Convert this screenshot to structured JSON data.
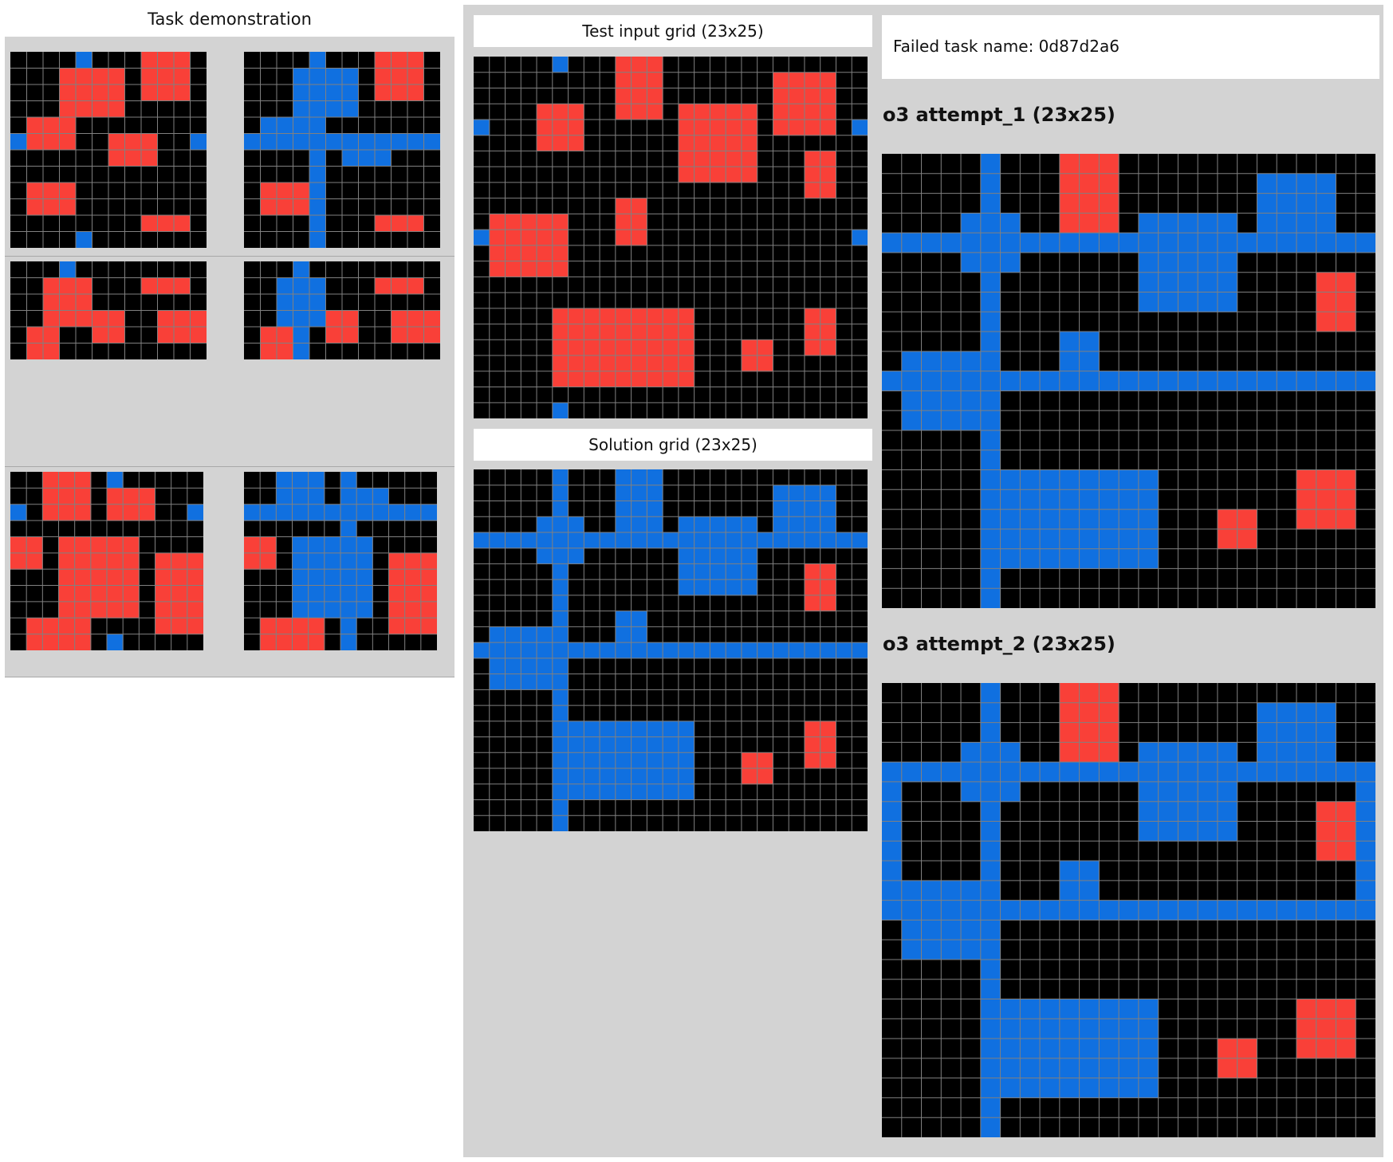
{
  "demo": {
    "title": "Task demonstration"
  },
  "right": {
    "input_caption": "Test input grid (23x25)",
    "solution_caption": "Solution grid (23x25)",
    "task_name": "Failed task name: 0d87d2a6",
    "attempt1_title": "o3 attempt_1 (23x25)",
    "attempt2_title": "o3 attempt_2 (23x25)"
  },
  "palette": {
    "0": "#000000",
    "1": "#1070e0",
    "2": "#f94038",
    "line": "#808080"
  },
  "grids": {
    "demo0_in": {
      "rows": 12,
      "cols": 12,
      "red": [
        [
          0,
          8,
          2,
          10
        ],
        [
          1,
          3,
          3,
          6
        ],
        [
          4,
          1,
          5,
          3
        ],
        [
          5,
          6,
          6,
          8
        ],
        [
          8,
          1,
          9,
          3
        ],
        [
          10,
          8,
          10,
          10
        ]
      ],
      "blue": [
        [
          0,
          4,
          0,
          4
        ],
        [
          5,
          0,
          5,
          0
        ],
        [
          5,
          11,
          5,
          11
        ],
        [
          11,
          4,
          11,
          4
        ]
      ]
    },
    "demo0_out": {
      "rows": 12,
      "cols": 12,
      "red": [
        [
          0,
          8,
          2,
          10
        ],
        [
          8,
          1,
          9,
          3
        ],
        [
          10,
          8,
          10,
          10
        ]
      ],
      "blue": [
        [
          0,
          4,
          11,
          4
        ],
        [
          5,
          0,
          5,
          11
        ],
        [
          1,
          3,
          3,
          6
        ],
        [
          4,
          1,
          5,
          3
        ],
        [
          5,
          6,
          6,
          8
        ]
      ]
    },
    "demo1_in": {
      "rows": 6,
      "cols": 12,
      "red": [
        [
          1,
          8,
          1,
          10
        ],
        [
          1,
          2,
          3,
          4
        ],
        [
          3,
          5,
          4,
          6
        ],
        [
          3,
          9,
          4,
          11
        ],
        [
          4,
          1,
          5,
          2
        ]
      ],
      "blue": [
        [
          0,
          3,
          0,
          3
        ],
        [
          6,
          3,
          6,
          3
        ]
      ]
    },
    "demo1_out": {
      "rows": 6,
      "cols": 12,
      "red": [
        [
          1,
          8,
          1,
          10
        ],
        [
          3,
          5,
          4,
          6
        ],
        [
          3,
          9,
          4,
          11
        ],
        [
          4,
          1,
          5,
          2
        ]
      ],
      "blue": [
        [
          0,
          3,
          5,
          3
        ],
        [
          1,
          2,
          3,
          4
        ]
      ]
    },
    "demo2_in": {
      "rows": 11,
      "cols": 12,
      "red": [
        [
          0,
          2,
          2,
          4
        ],
        [
          1,
          6,
          2,
          8
        ],
        [
          4,
          0,
          5,
          1
        ],
        [
          4,
          3,
          8,
          7
        ],
        [
          5,
          9,
          9,
          11
        ],
        [
          9,
          1,
          10,
          4
        ]
      ],
      "blue": [
        [
          0,
          6,
          0,
          6
        ],
        [
          2,
          0,
          2,
          0
        ],
        [
          2,
          11,
          2,
          11
        ],
        [
          10,
          6,
          10,
          6
        ]
      ]
    },
    "demo2_out": {
      "rows": 11,
      "cols": 12,
      "red": [
        [
          4,
          0,
          5,
          1
        ],
        [
          5,
          9,
          9,
          11
        ],
        [
          9,
          1,
          10,
          4
        ]
      ],
      "blue": [
        [
          0,
          6,
          10,
          6
        ],
        [
          2,
          0,
          2,
          11
        ],
        [
          0,
          2,
          2,
          4
        ],
        [
          1,
          6,
          2,
          8
        ],
        [
          4,
          3,
          8,
          7
        ]
      ]
    },
    "test_input": {
      "rows": 23,
      "cols": 25,
      "red": [
        [
          0,
          9,
          3,
          11
        ],
        [
          1,
          19,
          4,
          22
        ],
        [
          3,
          4,
          5,
          6
        ],
        [
          3,
          13,
          7,
          17
        ],
        [
          6,
          21,
          8,
          22
        ],
        [
          9,
          9,
          11,
          10
        ],
        [
          10,
          1,
          13,
          5
        ],
        [
          16,
          5,
          20,
          13
        ],
        [
          16,
          21,
          18,
          22
        ],
        [
          18,
          17,
          19,
          18
        ]
      ],
      "blue": [
        [
          0,
          5,
          0,
          5
        ],
        [
          4,
          0,
          4,
          0
        ],
        [
          4,
          24,
          4,
          24
        ],
        [
          11,
          0,
          11,
          0
        ],
        [
          11,
          24,
          11,
          24
        ],
        [
          22,
          5,
          22,
          5
        ]
      ]
    },
    "solution": {
      "rows": 23,
      "cols": 25,
      "red": [
        [
          6,
          21,
          8,
          22
        ],
        [
          16,
          21,
          18,
          22
        ],
        [
          18,
          17,
          19,
          18
        ]
      ],
      "blue": [
        [
          0,
          5,
          22,
          5
        ],
        [
          4,
          0,
          4,
          24
        ],
        [
          11,
          0,
          11,
          24
        ],
        [
          0,
          9,
          3,
          11
        ],
        [
          1,
          19,
          4,
          22
        ],
        [
          3,
          4,
          5,
          6
        ],
        [
          3,
          13,
          7,
          17
        ],
        [
          9,
          9,
          11,
          10
        ],
        [
          10,
          1,
          13,
          5
        ],
        [
          16,
          5,
          20,
          13
        ]
      ]
    },
    "attempt1": {
      "rows": 23,
      "cols": 25,
      "red": [
        [
          0,
          9,
          3,
          11
        ],
        [
          6,
          22,
          8,
          23
        ],
        [
          16,
          21,
          18,
          23
        ],
        [
          18,
          17,
          19,
          18
        ]
      ],
      "blue": [
        [
          0,
          5,
          22,
          5
        ],
        [
          4,
          0,
          4,
          24
        ],
        [
          11,
          0,
          11,
          24
        ],
        [
          1,
          19,
          4,
          22
        ],
        [
          3,
          13,
          7,
          17
        ],
        [
          3,
          4,
          5,
          6
        ],
        [
          9,
          9,
          11,
          10
        ],
        [
          10,
          1,
          13,
          5
        ],
        [
          16,
          6,
          20,
          13
        ]
      ]
    },
    "attempt2": {
      "rows": 23,
      "cols": 25,
      "red": [
        [
          0,
          9,
          3,
          11
        ],
        [
          6,
          22,
          8,
          23
        ],
        [
          16,
          21,
          18,
          23
        ],
        [
          18,
          17,
          19,
          18
        ]
      ],
      "blue": [
        [
          0,
          5,
          22,
          5
        ],
        [
          4,
          0,
          4,
          24
        ],
        [
          11,
          0,
          11,
          24
        ],
        [
          4,
          0,
          11,
          0
        ],
        [
          4,
          24,
          11,
          24
        ],
        [
          1,
          19,
          4,
          22
        ],
        [
          3,
          13,
          7,
          17
        ],
        [
          3,
          4,
          5,
          6
        ],
        [
          9,
          9,
          11,
          10
        ],
        [
          10,
          1,
          13,
          5
        ],
        [
          16,
          6,
          20,
          13
        ]
      ]
    }
  }
}
